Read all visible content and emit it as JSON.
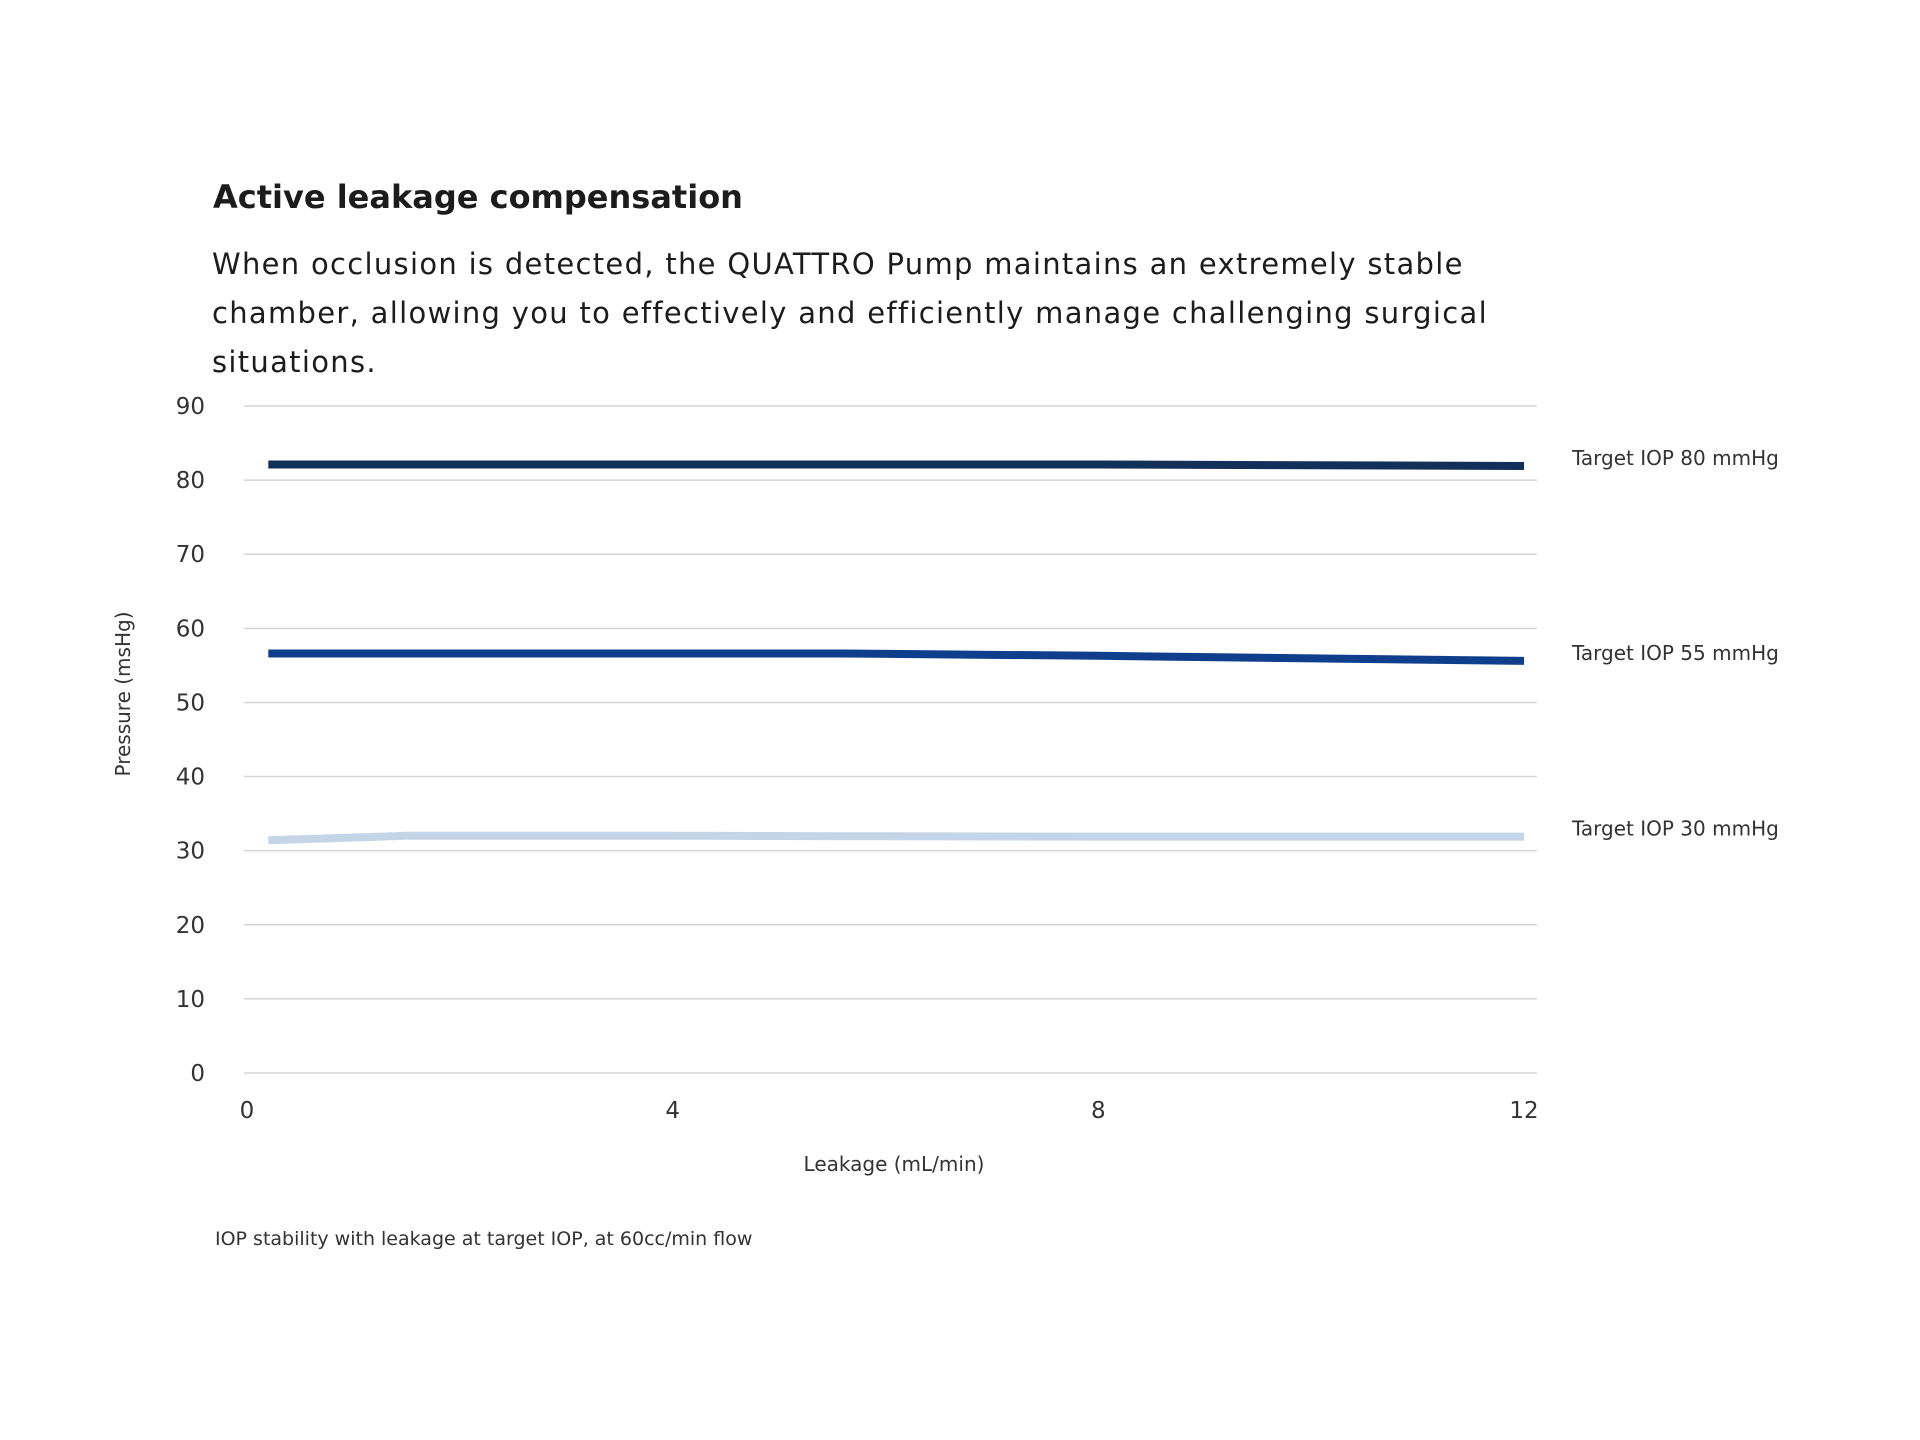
{
  "heading": "Active leakage compensation",
  "intro": "When occlusion is detected, the QUATTRO Pump maintains an extremely stable chamber, allowing you to effectively and efficiently manage challenging surgical situations.",
  "caption": "IOP stability with leakage at target IOP, at 60cc/min flow",
  "chart_data": {
    "type": "line",
    "title": "",
    "xlabel": "Leakage (mL/min)",
    "ylabel": "Pressure (msHg)",
    "xlim": [
      0,
      12
    ],
    "ylim": [
      0,
      90
    ],
    "x_ticks": [
      "0",
      "4",
      "8",
      "12"
    ],
    "y_ticks": [
      "0",
      "10",
      "20",
      "30",
      "40",
      "50",
      "60",
      "70",
      "80",
      "90"
    ],
    "grid": true,
    "legend": "inline-right",
    "series": [
      {
        "name": "Target IOP 80 mmHg",
        "color": "#13305a",
        "points": [
          [
            0.2,
            82.1
          ],
          [
            4,
            82.1
          ],
          [
            8,
            82.1
          ],
          [
            12,
            81.9
          ]
        ]
      },
      {
        "name": "Target IOP 55 mmHg",
        "color": "#0f3f8c",
        "points": [
          [
            0.2,
            56.6
          ],
          [
            5.6,
            56.6
          ],
          [
            8,
            56.3
          ],
          [
            12,
            55.6
          ]
        ]
      },
      {
        "name": "Target IOP 30 mmHg",
        "color": "#c5d5e8",
        "points": [
          [
            0.2,
            31.4
          ],
          [
            1.5,
            32.0
          ],
          [
            4,
            32.0
          ],
          [
            8,
            31.9
          ],
          [
            12,
            31.9
          ]
        ]
      }
    ]
  }
}
